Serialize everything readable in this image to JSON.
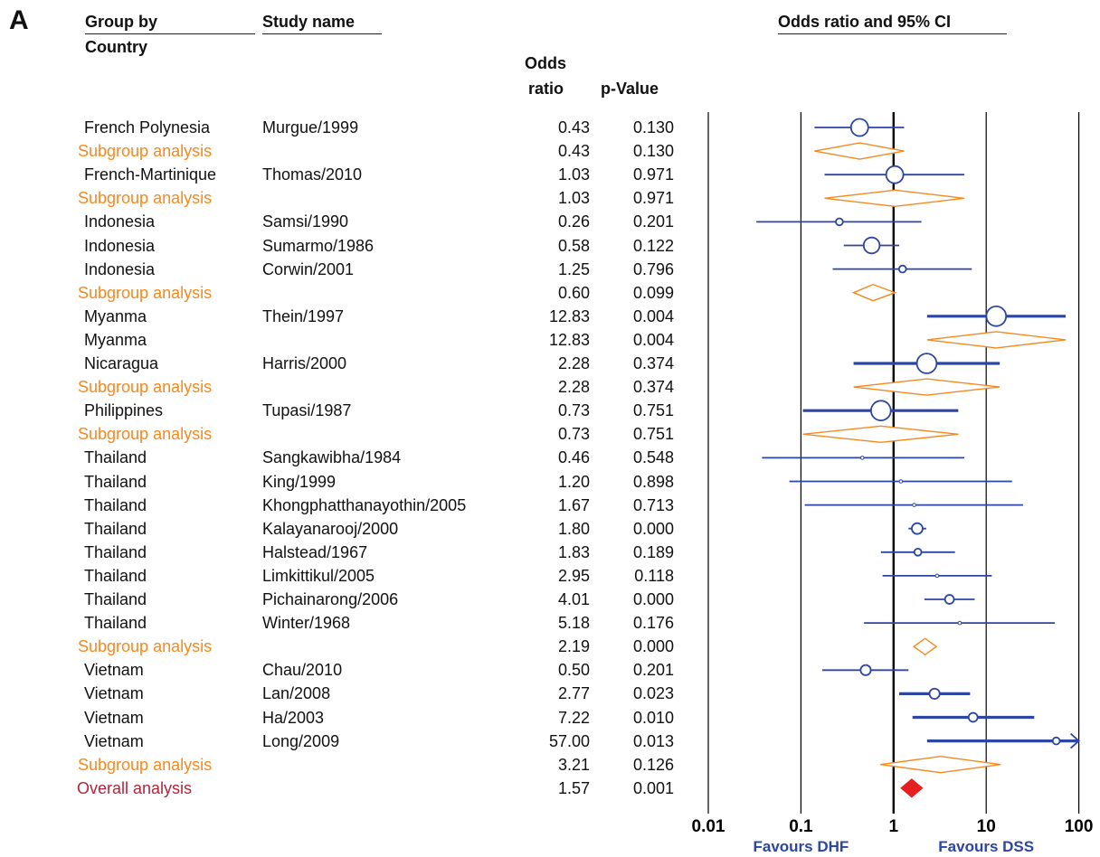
{
  "panel_label": "A",
  "headers": {
    "group_by": "Group by",
    "country": "Country",
    "study_name": "Study name",
    "odds_ratio_line1": "Odds",
    "odds_ratio_line2": "ratio",
    "p_value": "p-Value",
    "ci_title": "Odds ratio and 95% CI"
  },
  "colors": {
    "study": "#2d45a3",
    "subgroup": "#f5891f",
    "overall_text": "#b0253a",
    "overall_marker": "#e81f1f"
  },
  "chart_data": {
    "type": "forest",
    "scale": "log",
    "xlim": [
      0.01,
      100
    ],
    "xticks": [
      "0.01",
      "0.1",
      "1",
      "10",
      "100"
    ],
    "favours_left": "Favours DHF",
    "favours_right": "Favours DSS",
    "rows": [
      {
        "group": "French Polynesia",
        "study": "Murgue/1999",
        "or": "0.43",
        "p": "0.130",
        "kind": "study",
        "est": 0.43,
        "lo": 0.14,
        "hi": 1.3,
        "w": 1.0,
        "thick": 1
      },
      {
        "group": "Subgroup analysis",
        "study": "",
        "or": "0.43",
        "p": "0.130",
        "kind": "subgroup",
        "est": 0.43,
        "lo": 0.14,
        "hi": 1.3
      },
      {
        "group": "French-Martinique",
        "study": "Thomas/2010",
        "or": "1.03",
        "p": "0.971",
        "kind": "study",
        "est": 1.03,
        "lo": 0.18,
        "hi": 5.8,
        "w": 1.0,
        "thick": 1
      },
      {
        "group": "Subgroup analysis",
        "study": "",
        "or": "1.03",
        "p": "0.971",
        "kind": "subgroup",
        "est": 1.03,
        "lo": 0.18,
        "hi": 5.8
      },
      {
        "group": "Indonesia",
        "study": "Samsi/1990",
        "or": "0.26",
        "p": "0.201",
        "kind": "study",
        "est": 0.26,
        "lo": 0.033,
        "hi": 2.0,
        "w": 0.2,
        "thick": 1
      },
      {
        "group": "Indonesia",
        "study": "Sumarmo/1986",
        "or": "0.58",
        "p": "0.122",
        "kind": "study",
        "est": 0.58,
        "lo": 0.29,
        "hi": 1.15,
        "w": 0.9,
        "thick": 1
      },
      {
        "group": "Indonesia",
        "study": "Corwin/2001",
        "or": "1.25",
        "p": "0.796",
        "kind": "study",
        "est": 1.25,
        "lo": 0.22,
        "hi": 7.0,
        "w": 0.2,
        "thick": 1
      },
      {
        "group": "Subgroup analysis",
        "study": "",
        "or": "0.60",
        "p": "0.099",
        "kind": "subgroup",
        "est": 0.6,
        "lo": 0.37,
        "hi": 1.04
      },
      {
        "group": "Myanma",
        "study": "Thein/1997",
        "or": "12.83",
        "p": "0.004",
        "kind": "study",
        "est": 12.83,
        "lo": 2.3,
        "hi": 72.0,
        "w": 1.2,
        "thick": 2
      },
      {
        "group": "Myanma",
        "study": "",
        "or": "12.83",
        "p": "0.004",
        "kind": "subgroup",
        "est": 12.83,
        "lo": 2.3,
        "hi": 72.0
      },
      {
        "group": "Nicaragua",
        "study": "Harris/2000",
        "or": "2.28",
        "p": "0.374",
        "kind": "study",
        "est": 2.28,
        "lo": 0.37,
        "hi": 14.0,
        "w": 1.2,
        "thick": 2
      },
      {
        "group": "Subgroup analysis",
        "study": "",
        "or": "2.28",
        "p": "0.374",
        "kind": "subgroup",
        "est": 2.28,
        "lo": 0.37,
        "hi": 14.0
      },
      {
        "group": "Philippines",
        "study": "Tupasi/1987",
        "or": "0.73",
        "p": "0.751",
        "kind": "study",
        "est": 0.73,
        "lo": 0.105,
        "hi": 5.0,
        "w": 1.2,
        "thick": 2
      },
      {
        "group": "Subgroup analysis",
        "study": "",
        "or": "0.73",
        "p": "0.751",
        "kind": "subgroup",
        "est": 0.73,
        "lo": 0.105,
        "hi": 5.0
      },
      {
        "group": "Thailand",
        "study": "Sangkawibha/1984",
        "or": "0.46",
        "p": "0.548",
        "kind": "study",
        "est": 0.46,
        "lo": 0.038,
        "hi": 5.8,
        "w": 0,
        "thick": 1
      },
      {
        "group": "Thailand",
        "study": "King/1999",
        "or": "1.20",
        "p": "0.898",
        "kind": "study",
        "est": 1.2,
        "lo": 0.075,
        "hi": 19.0,
        "w": 0,
        "thick": 1
      },
      {
        "group": "Thailand",
        "study": "Khongphatthanayothin/2005",
        "or": "1.67",
        "p": "0.713",
        "kind": "study",
        "est": 1.67,
        "lo": 0.11,
        "hi": 25.0,
        "w": 0,
        "thick": 1
      },
      {
        "group": "Thailand",
        "study": "Kalayanarooj/2000",
        "or": "1.80",
        "p": "0.000",
        "kind": "study",
        "est": 1.8,
        "lo": 1.45,
        "hi": 2.25,
        "w": 0.5,
        "thick": 1
      },
      {
        "group": "Thailand",
        "study": "Halstead/1967",
        "or": "1.83",
        "p": "0.189",
        "kind": "study",
        "est": 1.83,
        "lo": 0.73,
        "hi": 4.6,
        "w": 0.2,
        "thick": 1
      },
      {
        "group": "Thailand",
        "study": "Limkittikul/2005",
        "or": "2.95",
        "p": "0.118",
        "kind": "study",
        "est": 2.95,
        "lo": 0.76,
        "hi": 11.5,
        "w": 0,
        "thick": 1
      },
      {
        "group": "Thailand",
        "study": "Pichainarong/2006",
        "or": "4.01",
        "p": "0.000",
        "kind": "study",
        "est": 4.01,
        "lo": 2.15,
        "hi": 7.5,
        "w": 0.35,
        "thick": 1
      },
      {
        "group": "Thailand",
        "study": "Winter/1968",
        "or": "5.18",
        "p": "0.176",
        "kind": "study",
        "est": 5.18,
        "lo": 0.48,
        "hi": 55.0,
        "w": 0,
        "thick": 1
      },
      {
        "group": "Subgroup analysis",
        "study": "",
        "or": "2.19",
        "p": "0.000",
        "kind": "subgroup",
        "est": 2.19,
        "lo": 1.65,
        "hi": 2.9
      },
      {
        "group": "Vietnam",
        "study": "Chau/2010",
        "or": "0.50",
        "p": "0.201",
        "kind": "study",
        "est": 0.5,
        "lo": 0.17,
        "hi": 1.45,
        "w": 0.45,
        "thick": 1
      },
      {
        "group": "Vietnam",
        "study": "Lan/2008",
        "or": "2.77",
        "p": "0.023",
        "kind": "study",
        "est": 2.77,
        "lo": 1.15,
        "hi": 6.7,
        "w": 0.45,
        "thick": 2
      },
      {
        "group": "Vietnam",
        "study": "Ha/2003",
        "or": "7.22",
        "p": "0.010",
        "kind": "study",
        "est": 7.22,
        "lo": 1.6,
        "hi": 33.0,
        "w": 0.35,
        "thick": 2
      },
      {
        "group": "Vietnam",
        "study": "Long/2009",
        "or": "57.00",
        "p": "0.013",
        "kind": "study",
        "est": 57.0,
        "lo": 2.3,
        "hi": 100,
        "w": 0.2,
        "thick": 2,
        "arrow": true
      },
      {
        "group": "Subgroup analysis",
        "study": "",
        "or": "3.21",
        "p": "0.126",
        "kind": "subgroup",
        "est": 3.21,
        "lo": 0.72,
        "hi": 14.3
      },
      {
        "group": "Overall analysis",
        "study": "",
        "or": "1.57",
        "p": "0.001",
        "kind": "overall",
        "est": 1.57,
        "lo": 1.2,
        "hi": 2.05
      }
    ]
  }
}
